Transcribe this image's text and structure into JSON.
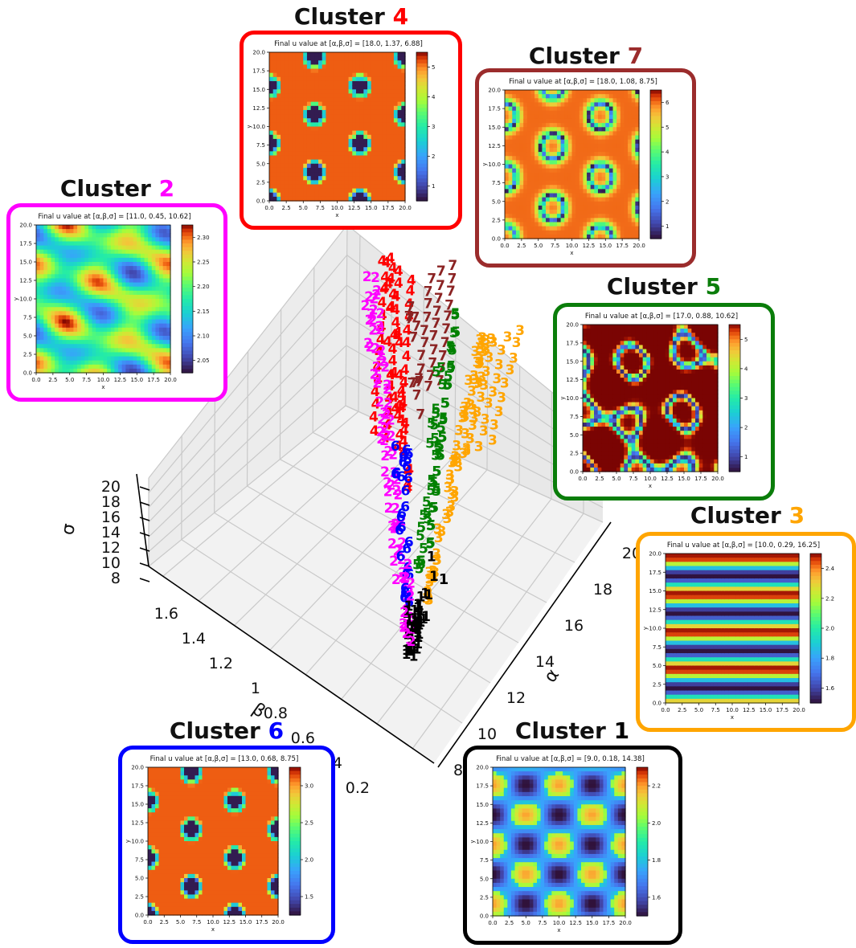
{
  "main_chart": {
    "chart_data": {
      "type": "scatter",
      "kind": "3d-scatter",
      "marker": "cluster id digit",
      "axes": {
        "alpha": {
          "label": "α",
          "ticks": [
            8,
            10,
            12,
            14,
            16,
            18,
            20
          ]
        },
        "beta": {
          "label": "β",
          "ticks": [
            0.2,
            0.4,
            0.6,
            0.8,
            1.0,
            1.2,
            1.4,
            1.6
          ]
        },
        "sigma": {
          "label": "σ",
          "ticks": [
            8,
            10,
            12,
            14,
            16,
            18,
            20
          ]
        }
      },
      "series": [
        {
          "cluster": "1",
          "color": "#000000"
        },
        {
          "cluster": "2",
          "color": "#ff00ff"
        },
        {
          "cluster": "3",
          "color": "#ffa500"
        },
        {
          "cluster": "4",
          "color": "#ff0000"
        },
        {
          "cluster": "5",
          "color": "#008000"
        },
        {
          "cluster": "6",
          "color": "#0000ff"
        },
        {
          "cluster": "7",
          "color": "#8b2323"
        }
      ]
    }
  },
  "panels": [
    {
      "id": "4",
      "title_prefix": "Cluster ",
      "title_num": "4",
      "color": "#ff0000",
      "subtitle": "Final u value at [α,β,σ] = [18.0, 1.37, 6.88]",
      "cb_ticks": [
        "1",
        "2",
        "3",
        "4",
        "5"
      ],
      "pattern": "spots"
    },
    {
      "id": "7",
      "title_prefix": "Cluster ",
      "title_num": "7",
      "color": "#9b2c2c",
      "subtitle": "Final u value at [α,β,σ] = [18.0, 1.08, 8.75]",
      "cb_ticks": [
        "1",
        "2",
        "3",
        "4",
        "5",
        "6"
      ],
      "pattern": "mixed"
    },
    {
      "id": "2",
      "title_prefix": "Cluster ",
      "title_num": "2",
      "color": "#ff00ff",
      "subtitle": "Final u value at [α,β,σ] = [11.0, 0.45, 10.62]",
      "cb_ticks": [
        "2.05",
        "2.10",
        "2.15",
        "2.20",
        "2.25",
        "2.30"
      ],
      "pattern": "weak"
    },
    {
      "id": "5",
      "title_prefix": "Cluster ",
      "title_num": "5",
      "color": "#0a7d0a",
      "subtitle": "Final u value at [α,β,σ] = [17.0, 0.88, 10.62]",
      "cb_ticks": [
        "1",
        "2",
        "3",
        "4",
        "5"
      ],
      "pattern": "labyrinth"
    },
    {
      "id": "3",
      "title_prefix": "Cluster ",
      "title_num": "3",
      "color": "#ffa500",
      "subtitle": "Final u value at [α,β,σ] = [10.0, 0.29, 16.25]",
      "cb_ticks": [
        "1.6",
        "1.8",
        "2.0",
        "2.2",
        "2.4"
      ],
      "pattern": "stripes"
    },
    {
      "id": "6",
      "title_prefix": "Cluster ",
      "title_num": "6",
      "color": "#0000ff",
      "subtitle": "Final u value at [α,β,σ] = [13.0, 0.68, 8.75]",
      "cb_ticks": [
        "1.5",
        "2.0",
        "2.5",
        "3.0"
      ],
      "pattern": "spots"
    },
    {
      "id": "1",
      "title_prefix": "Cluster ",
      "title_num": "1",
      "color": "#000000",
      "subtitle": "Final u value at [α,β,σ] = [9.0, 0.18, 14.38]",
      "cb_ticks": [
        "1.6",
        "1.8",
        "2.0",
        "2.2"
      ],
      "pattern": "cells"
    }
  ],
  "heatmap_axes": {
    "x_label": "x",
    "y_label": "y",
    "ticks": [
      "0.0",
      "2.5",
      "5.0",
      "7.5",
      "10.0",
      "12.5",
      "15.0",
      "17.5",
      "20.0"
    ]
  }
}
